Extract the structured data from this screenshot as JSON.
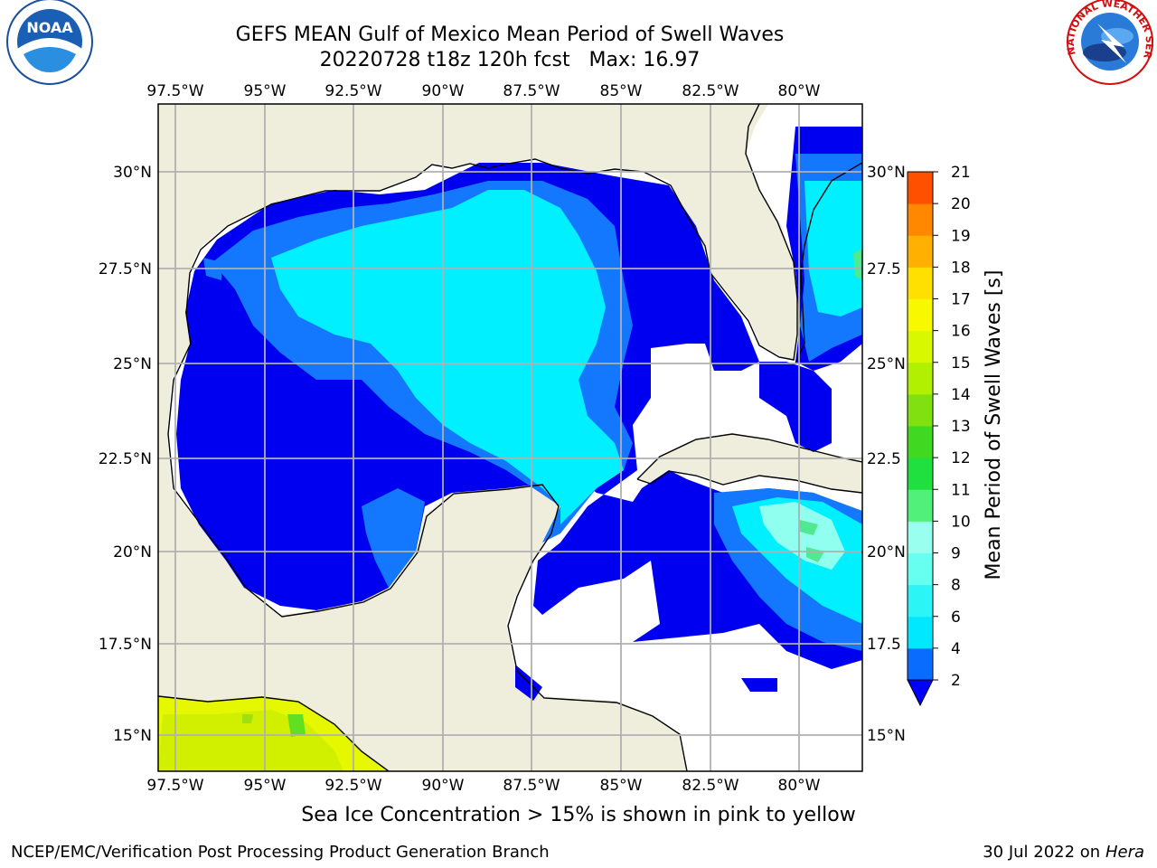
{
  "title": {
    "line1": "GEFS MEAN Gulf of Mexico Mean Period of Swell Waves",
    "line2": "20220728 t18z 120h fcst   Max: 16.97"
  },
  "caption": "Sea Ice Concentration > 15% is shown in pink to yellow",
  "footer": {
    "left": "NCEP/EMC/Verification Post Processing Product Generation Branch",
    "date": "30 Jul 2022 on ",
    "host": "Hera"
  },
  "logos": {
    "noaa": "NOAA",
    "nws": "NATIONAL WEATHER SERVICE"
  },
  "map": {
    "lon_ticks": [
      "97.5°W",
      "95°W",
      "92.5°W",
      "90°W",
      "87.5°W",
      "85°W",
      "82.5°W",
      "80°W"
    ],
    "lat_ticks_left": [
      "30°N",
      "27.5°N",
      "25°N",
      "22.5°N",
      "20°N",
      "17.5°N",
      "15°N"
    ],
    "lat_ticks_right": [
      "30°N",
      "27.5",
      "25°N",
      "22.5",
      "20°N",
      "17.5",
      "15°N"
    ],
    "land_color": "#efeedc",
    "water_color": "#ffffff",
    "grid_color": "#b0b0b0"
  },
  "colorbar": {
    "label": "Mean Period of Swell Waves [s]",
    "ticks": [
      "2",
      "4",
      "6",
      "8",
      "9",
      "10",
      "11",
      "12",
      "13",
      "14",
      "15",
      "16",
      "17",
      "18",
      "19",
      "20",
      "21"
    ],
    "colors": [
      "#0a6cff",
      "#00e8ff",
      "#2cf5f5",
      "#66fff0",
      "#99ffee",
      "#50f07a",
      "#20e040",
      "#40d820",
      "#80e010",
      "#b0f000",
      "#d8f800",
      "#f8f800",
      "#ffe000",
      "#ffb000",
      "#ff8800",
      "#ff5000",
      "#ff2000",
      "#ff0000"
    ],
    "extend_color": "#0000ff"
  }
}
